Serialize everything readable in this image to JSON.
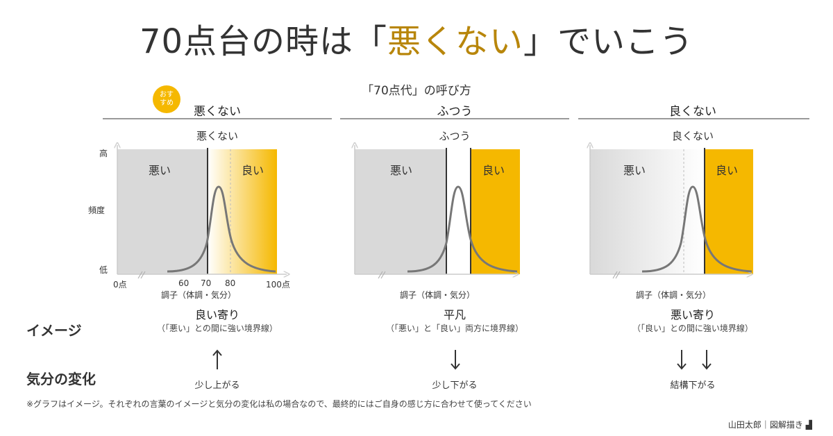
{
  "title": {
    "pre": "70点台の時は「",
    "highlight": "悪くない",
    "post": "」でいこう"
  },
  "subtitle": "「70点代」の呼び方",
  "badge": {
    "line1": "おす",
    "line2": "すめ"
  },
  "columns": [
    {
      "head": "悪くない",
      "panel_label": "悪くない",
      "bad_label": "悪い",
      "good_label": "良い",
      "image_main": "良い寄り",
      "image_sub": "（「悪い」との間に強い境界線）",
      "mood": "少し上がる",
      "arrows": "up1"
    },
    {
      "head": "ふつう",
      "panel_label": "ふつう",
      "bad_label": "悪い",
      "good_label": "良い",
      "image_main": "平凡",
      "image_sub": "（「悪い」と「良い」両方に境界線）",
      "mood": "少し下がる",
      "arrows": "down1"
    },
    {
      "head": "良くない",
      "panel_label": "良くない",
      "bad_label": "悪い",
      "good_label": "良い",
      "image_main": "悪い寄り",
      "image_sub": "（「良い」との間に強い境界線）",
      "mood": "結構下がる",
      "arrows": "down2"
    }
  ],
  "axes": {
    "y_high": "高",
    "y_mid": "頻度",
    "y_low": "低",
    "x_ticks": [
      "0点",
      "60",
      "70",
      "80",
      "100点"
    ],
    "x_label": "調子（体調・気分）"
  },
  "row_labels": {
    "image": "イメージ",
    "mood": "気分の変化"
  },
  "footnote": "※グラフはイメージ。それぞれの言葉のイメージと気分の変化は私の場合なので、最終的にはご自身の感じ方に合わせて使ってください",
  "credit": "山田太郎｜図解描き",
  "colors": {
    "accent": "#f5b800",
    "gray_region": "#d9d9d9",
    "curve": "#777777",
    "title_highlight": "#b8860b"
  }
}
